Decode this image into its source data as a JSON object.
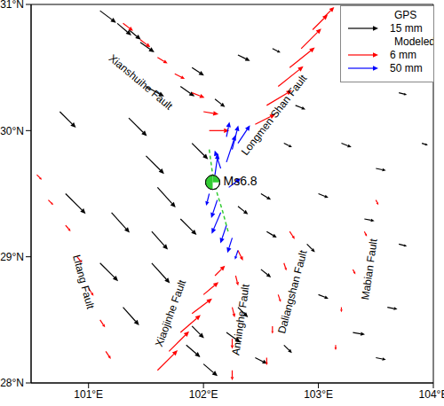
{
  "chart_data": {
    "type": "scatter",
    "xlim": [
      100.5,
      104
    ],
    "ylim": [
      28,
      31
    ],
    "xticks": [
      {
        "value": 101,
        "label": "101°E"
      },
      {
        "value": 102,
        "label": "102°E"
      },
      {
        "value": 103,
        "label": "103°E"
      },
      {
        "value": 104,
        "label": "104°E"
      }
    ],
    "yticks": [
      {
        "value": 28,
        "label": "28°N"
      },
      {
        "value": 29,
        "label": "29°N"
      },
      {
        "value": 30,
        "label": "30°N"
      },
      {
        "value": 31,
        "label": "31°N"
      }
    ],
    "grid": false,
    "legend": "upper right",
    "series": [
      {
        "name": "GPS",
        "color": "#000000",
        "scale": 15,
        "scale_label": "15 mm",
        "marker": "arrow",
        "x": [
          101.1,
          101.25,
          101.35,
          101.45,
          100.75,
          101.35,
          100.8,
          101.2,
          101.6,
          101.5,
          101.9,
          101.1,
          101.55,
          101.3,
          101.55,
          101.8,
          101.0,
          101.85,
          102.0,
          101.9,
          102.2,
          102.45,
          102.3,
          102.5,
          102.7,
          102.3,
          102.55,
          102.5,
          102.9,
          103.0,
          103.3,
          103.5,
          103.0,
          103.4,
          103.5,
          103.2,
          103.7,
          103.6,
          102.7,
          102.8,
          103.3,
          103.7,
          101.9,
          102.3,
          102.6,
          102.1,
          101.8,
          101.5,
          103.9
        ],
        "y": [
          30.95,
          30.85,
          30.8,
          30.7,
          30.15,
          30.1,
          29.5,
          29.35,
          29.55,
          29.8,
          29.9,
          28.95,
          28.95,
          28.6,
          29.2,
          29.3,
          28.0,
          28.3,
          28.15,
          28.45,
          28.4,
          28.2,
          28.6,
          28.9,
          28.3,
          29.4,
          29.2,
          29.5,
          29.1,
          28.7,
          28.4,
          28.2,
          29.5,
          29.3,
          29.7,
          29.9,
          29.1,
          28.6,
          29.9,
          30.2,
          30.5,
          30.3,
          30.5,
          30.6,
          30.65,
          30.25,
          30.35,
          30.35,
          29.9
        ],
        "east": [
          8,
          7,
          6,
          7,
          8,
          9,
          10,
          9,
          9,
          9,
          8,
          9,
          9,
          8,
          8,
          8,
          7,
          7,
          7,
          6,
          7,
          6,
          5,
          5,
          4,
          5,
          5,
          5,
          4,
          5,
          6,
          5,
          5,
          5,
          5,
          5,
          4,
          5,
          4,
          5,
          4,
          4,
          6,
          6,
          4,
          5,
          7,
          9,
          3
        ],
        "north": [
          -6,
          -6,
          -5,
          -5,
          -8,
          -9,
          -10,
          -10,
          -10,
          -9,
          -8,
          -9,
          -10,
          -9,
          -9,
          -8,
          -5,
          -6,
          -6,
          -6,
          -5,
          -3,
          -5,
          -4,
          -4,
          -4,
          -3,
          -3,
          -4,
          -2,
          -1,
          -1,
          -2,
          -1,
          -1,
          -2,
          -1,
          -1,
          -2,
          -2,
          -1,
          -1,
          -4,
          -3,
          -2,
          -4,
          -5,
          -5,
          -1
        ]
      },
      {
        "name": "Modeled",
        "color": "#ff0000",
        "scale": 6,
        "scale_label": "6 mm",
        "marker": "arrow",
        "x": [
          101.3,
          101.45,
          101.6,
          101.75,
          101.9,
          102.0,
          102.05,
          102.45,
          102.55,
          102.65,
          102.75,
          102.85,
          102.95,
          103.05,
          100.55,
          100.65,
          100.8,
          100.9,
          101.0,
          101.1,
          101.15,
          101.6,
          101.7,
          101.8,
          101.9,
          102.0,
          102.1,
          102.25,
          102.25,
          102.25,
          102.28,
          102.3,
          102.55,
          102.6,
          102.65,
          102.7,
          102.75,
          103.15,
          103.2,
          103.3,
          103.4,
          103.5
        ],
        "y": [
          30.85,
          30.72,
          30.58,
          30.45,
          30.3,
          30.15,
          30.0,
          30.05,
          30.2,
          30.35,
          30.5,
          30.65,
          30.8,
          30.9,
          29.65,
          29.45,
          29.25,
          29.0,
          28.75,
          28.5,
          28.25,
          28.1,
          28.25,
          28.4,
          28.55,
          28.7,
          28.85,
          28.1,
          28.35,
          28.6,
          28.85,
          29.05,
          28.2,
          28.45,
          28.7,
          28.95,
          29.2,
          28.3,
          28.6,
          28.9,
          29.2,
          29.45
        ],
        "east": [
          2,
          2,
          2,
          2,
          2.5,
          3,
          4,
          4,
          5,
          5,
          5,
          4,
          3,
          2,
          1,
          1,
          1,
          1,
          1,
          1,
          1,
          4,
          4,
          4,
          4,
          3,
          2,
          0,
          0,
          0.5,
          0.5,
          1,
          0,
          0,
          0.5,
          0.5,
          1,
          0,
          0,
          0.5,
          0.5,
          0.5
        ],
        "north": [
          -1.5,
          -1.5,
          -1.2,
          -1,
          -1,
          -0.5,
          0,
          2,
          3,
          4,
          4,
          4,
          3,
          2,
          -1,
          -1,
          -1.2,
          -1.2,
          -1.5,
          -1.5,
          -1.5,
          4,
          4,
          3.5,
          3,
          2.5,
          2,
          -2,
          -2,
          -2,
          -2,
          -2,
          -1.5,
          -1.5,
          -1.5,
          -1.5,
          -1.5,
          -1,
          -1,
          -1,
          -1,
          -1
        ]
      },
      {
        "name": "Modeled",
        "color": "#0000ff",
        "scale": 50,
        "scale_label": "50 mm",
        "marker": "arrow",
        "x": [
          102.2,
          102.25,
          102.2,
          102.15,
          102.1,
          102.3,
          102.12,
          102.15,
          102.2,
          102.25,
          102.3,
          102.05,
          102.22
        ],
        "y": [
          29.95,
          29.85,
          29.75,
          29.7,
          29.65,
          29.9,
          29.45,
          29.35,
          29.25,
          29.15,
          29.05,
          29.5,
          29.55
        ],
        "east": [
          5,
          10,
          15,
          -10,
          5,
          20,
          -10,
          -15,
          -10,
          -8,
          -5,
          -5,
          20
        ],
        "north": [
          25,
          40,
          45,
          30,
          35,
          30,
          -30,
          -35,
          -30,
          -25,
          -15,
          -20,
          15
        ]
      }
    ],
    "rupture": {
      "color": "#33cc33",
      "line_style": "dashed",
      "x": [
        102.05,
        102.08,
        102.12,
        102.17,
        102.22
      ],
      "y": [
        29.85,
        29.65,
        29.5,
        29.35,
        29.18
      ]
    },
    "epicenter": {
      "x": 102.08,
      "y": 29.59,
      "label": "Ms6.8",
      "color": "#33cc33"
    },
    "annotations": [
      {
        "x": 101.45,
        "y": 30.38,
        "text": "Xianshuihe Fault"
      },
      {
        "x": 102.62,
        "y": 30.12,
        "text": "Longmen Shan Fault"
      },
      {
        "x": 101.72,
        "y": 28.55,
        "text": "Xiaojinhe Fault"
      },
      {
        "x": 102.33,
        "y": 28.5,
        "text": "Anninghe Fault"
      },
      {
        "x": 102.78,
        "y": 28.72,
        "text": "Daliangshan Fault"
      },
      {
        "x": 103.45,
        "y": 28.9,
        "text": "Mabian Fault"
      },
      {
        "x": 100.95,
        "y": 28.8,
        "text": "Litang Fault"
      }
    ]
  }
}
